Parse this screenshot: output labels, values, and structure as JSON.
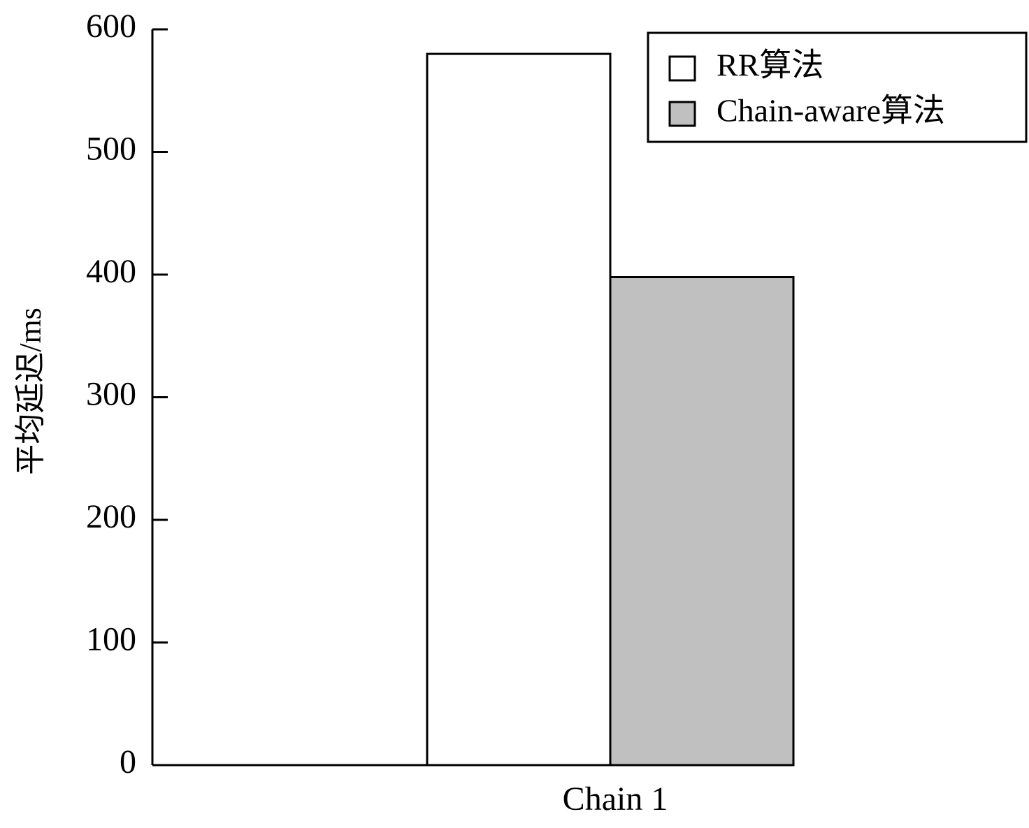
{
  "chart_data": {
    "type": "bar",
    "y_label": "平均延迟/ms",
    "categories": [
      "Chain 1"
    ],
    "series": [
      {
        "name": "RR算法",
        "color": "#ffffff",
        "values": [
          580
        ]
      },
      {
        "name": "Chain-aware算法",
        "color": "#c0c0c0",
        "values": [
          398
        ]
      }
    ],
    "ylim": [
      0,
      600
    ],
    "yticks": [
      0,
      100,
      200,
      300,
      400,
      500,
      600
    ],
    "legend": "upper right"
  }
}
